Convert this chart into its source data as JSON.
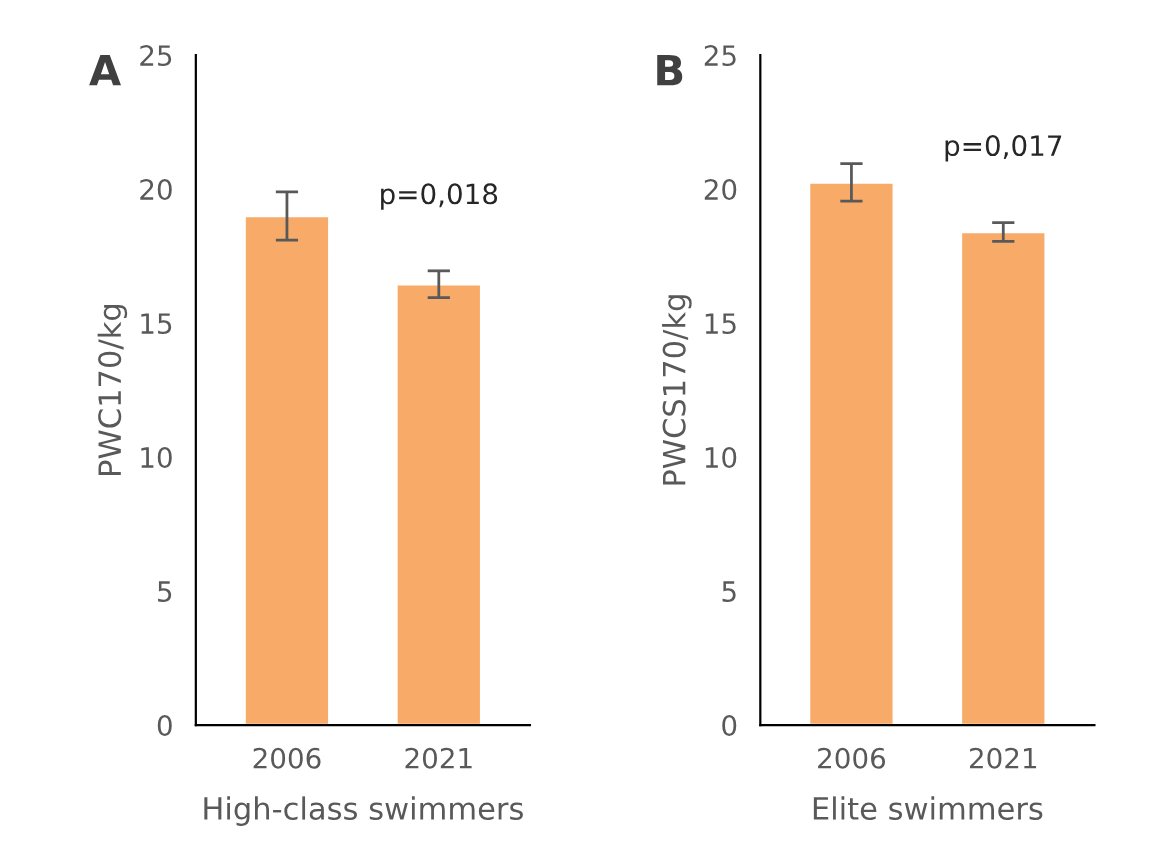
{
  "chart_data": [
    {
      "type": "bar",
      "title": "A",
      "categories": [
        "2006",
        "2021"
      ],
      "values": [
        19.0,
        16.45
      ],
      "errors": [
        0.9,
        0.5
      ],
      "color": "#f8aa68",
      "ylabel": "PWC170/kg",
      "xlabel": "High-class swimmers",
      "ylim": [
        0,
        25
      ],
      "yticks": [
        0,
        5,
        10,
        15,
        20,
        25
      ],
      "grid": false,
      "annotations": [
        "p=0,018"
      ]
    },
    {
      "type": "bar",
      "title": "B",
      "categories": [
        "2006",
        "2021"
      ],
      "values": [
        20.25,
        18.4
      ],
      "errors": [
        0.7,
        0.35
      ],
      "color": "#f8aa68",
      "ylabel": "PWCS170/kg",
      "xlabel": "Elite swimmers",
      "ylim": [
        0,
        25
      ],
      "yticks": [
        0,
        5,
        10,
        15,
        20,
        25
      ],
      "grid": false,
      "annotations": [
        "p=0,017"
      ]
    }
  ]
}
